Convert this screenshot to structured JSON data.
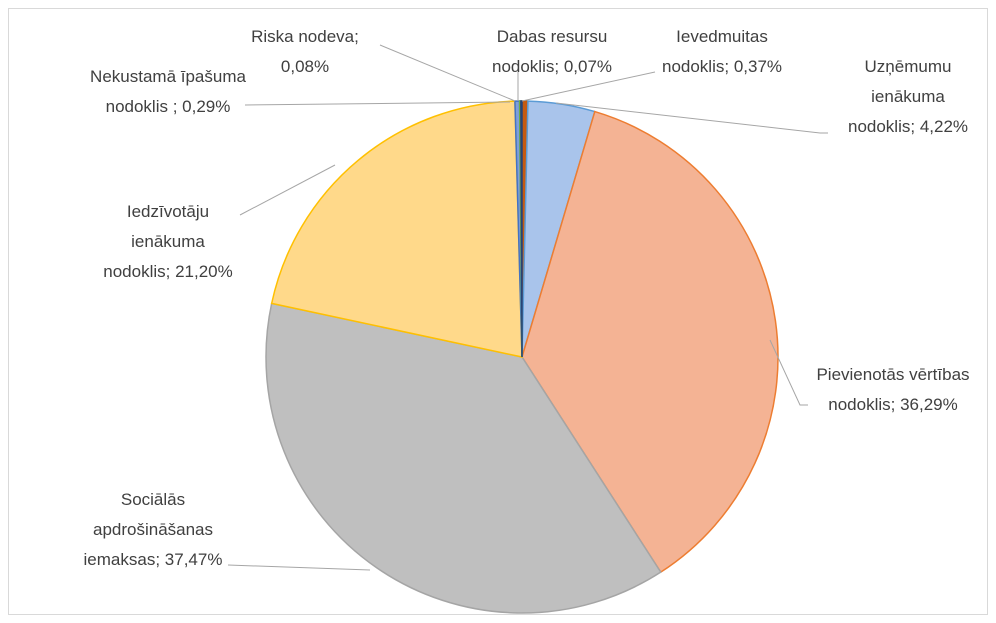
{
  "chart_data": {
    "type": "pie",
    "categories": [
      "Ievedmuitas nodoklis",
      "Uzņēmumu ienākuma nodoklis",
      "Pievienotās vērtības nodoklis",
      "Sociālās apdrošināšanas iemaksas",
      "Iedzīvotāju ienākuma nodoklis",
      "Nekustamā īpašuma nodoklis ",
      "Riska nodeva",
      "Dabas resursu nodoklis"
    ],
    "values": [
      0.37,
      4.22,
      36.29,
      37.47,
      21.2,
      0.29,
      0.08,
      0.07
    ],
    "value_labels": [
      "0,37%",
      "4,22%",
      "36,29%",
      "37,47%",
      "21,20%",
      "0,29%",
      "0,08%",
      "0,07%"
    ],
    "label_separator": "; ",
    "colors": [
      "#c55a11",
      "#a9c4eb",
      "#f4b394",
      "#bfbfbf",
      "#ffd98a",
      "#7f9fd9",
      "#9dc37f",
      "#3b5c9a"
    ],
    "border_colors": [
      "#c55a11",
      "#5b9bd5",
      "#ed7d31",
      "#a5a5a5",
      "#ffc000",
      "#4472c4",
      "#70ad47",
      "#264478"
    ]
  }
}
